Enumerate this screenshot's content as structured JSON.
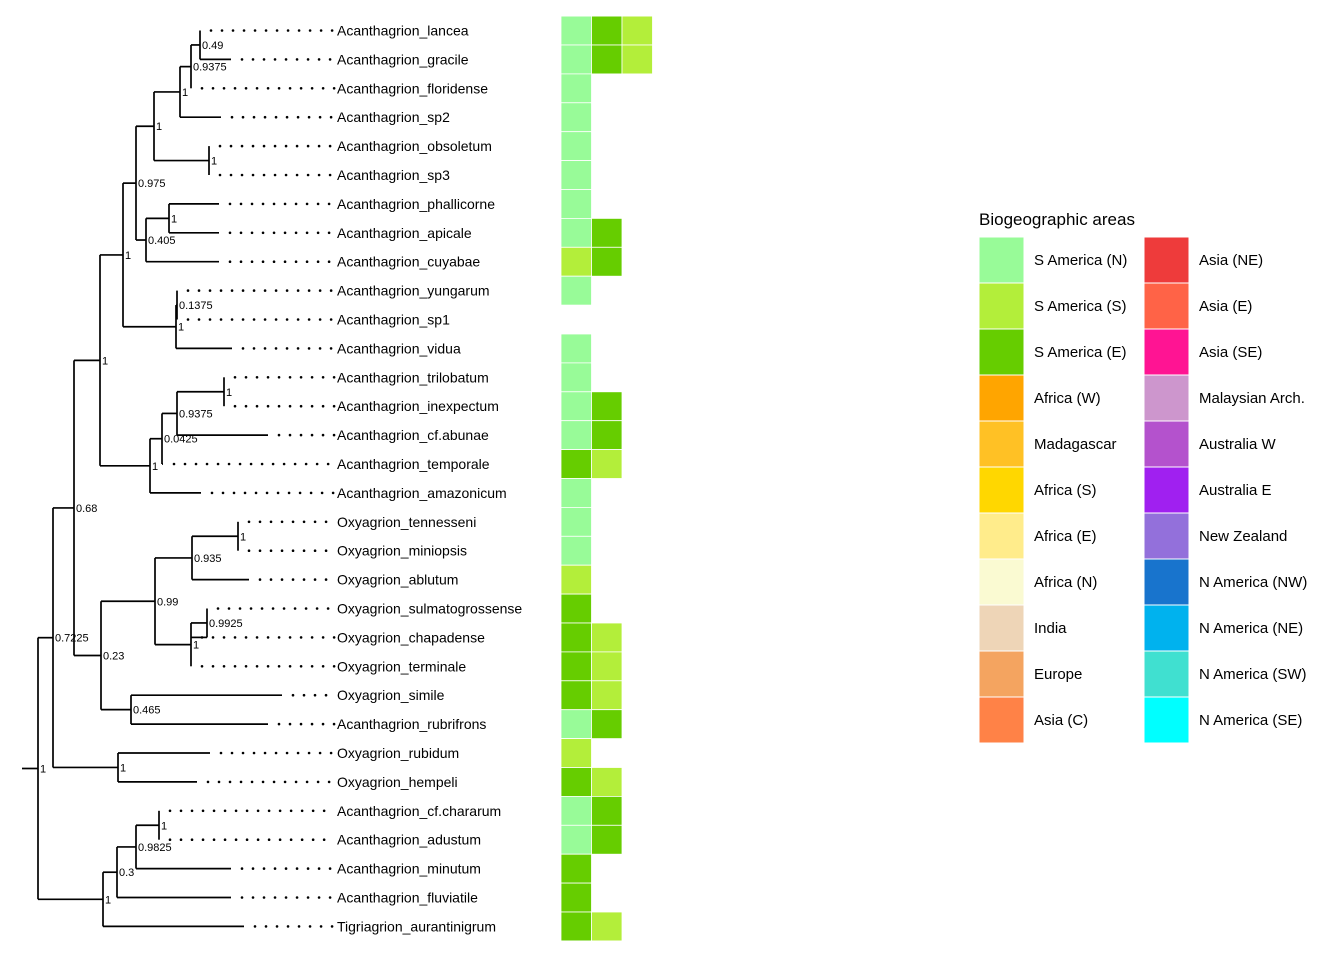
{
  "legend": {
    "title": "Biogeographic areas",
    "columns": [
      [
        {
          "label": "S America (N)",
          "color": "#98FB98"
        },
        {
          "label": "S America (S)",
          "color": "#B3EE3A"
        },
        {
          "label": "S America (E)",
          "color": "#66CD00"
        },
        {
          "label": "Africa (W)",
          "color": "#FFA500"
        },
        {
          "label": "Madagascar",
          "color": "#FFC125"
        },
        {
          "label": "Africa (S)",
          "color": "#FFD700"
        },
        {
          "label": "Africa (E)",
          "color": "#FFEC8B"
        },
        {
          "label": "Africa (N)",
          "color": "#FAFAD2"
        },
        {
          "label": "India",
          "color": "#EED5B7"
        },
        {
          "label": "Europe",
          "color": "#F4A460"
        },
        {
          "label": "Asia (C)",
          "color": "#FF8247"
        }
      ],
      [
        {
          "label": "Asia (NE)",
          "color": "#EE3B3B"
        },
        {
          "label": "Asia (E)",
          "color": "#FF6347"
        },
        {
          "label": "Asia (SE)",
          "color": "#FF1493"
        },
        {
          "label": "Malaysian Arch.",
          "color": "#CD96CD"
        },
        {
          "label": "Australia W",
          "color": "#B452CD"
        },
        {
          "label": "Australia E",
          "color": "#A020F0"
        },
        {
          "label": "New Zealand",
          "color": "#9370DB"
        },
        {
          "label": "N America (NW)",
          "color": "#1874CD"
        },
        {
          "label": "N America (NE)",
          "color": "#00B2EE"
        },
        {
          "label": "N America (SW)",
          "color": "#40E0D0"
        },
        {
          "label": "N America (SE)",
          "color": "#00FFFF"
        }
      ]
    ]
  },
  "tree": {
    "tips": [
      {
        "name": "Acanthagrion_lancea",
        "areas": [
          "S America (N)",
          "S America (E)",
          "S America (S)"
        ]
      },
      {
        "name": "Acanthagrion_gracile",
        "areas": [
          "S America (N)",
          "S America (E)",
          "S America (S)"
        ]
      },
      {
        "name": "Acanthagrion_floridense",
        "areas": [
          "S America (N)"
        ]
      },
      {
        "name": "Acanthagrion_sp2",
        "areas": [
          "S America (N)"
        ]
      },
      {
        "name": "Acanthagrion_obsoletum",
        "areas": [
          "S America (N)"
        ]
      },
      {
        "name": "Acanthagrion_sp3",
        "areas": [
          "S America (N)"
        ]
      },
      {
        "name": "Acanthagrion_phallicorne",
        "areas": [
          "S America (N)"
        ]
      },
      {
        "name": "Acanthagrion_apicale",
        "areas": [
          "S America (N)",
          "S America (E)"
        ]
      },
      {
        "name": "Acanthagrion_cuyabae",
        "areas": [
          "S America (S)",
          "S America (E)"
        ]
      },
      {
        "name": "Acanthagrion_yungarum",
        "areas": [
          "S America (N)"
        ]
      },
      {
        "name": "Acanthagrion_sp1",
        "areas": []
      },
      {
        "name": "Acanthagrion_vidua",
        "areas": [
          "S America (N)"
        ]
      },
      {
        "name": "Acanthagrion_trilobatum",
        "areas": [
          "S America (N)"
        ]
      },
      {
        "name": "Acanthagrion_inexpectum",
        "areas": [
          "S America (N)",
          "S America (E)"
        ]
      },
      {
        "name": "Acanthagrion_cf.abunae",
        "areas": [
          "S America (N)",
          "S America (E)"
        ]
      },
      {
        "name": "Acanthagrion_temporale",
        "areas": [
          "S America (E)",
          "S America (S)"
        ]
      },
      {
        "name": "Acanthagrion_amazonicum",
        "areas": [
          "S America (N)"
        ]
      },
      {
        "name": "Oxyagrion_tennesseni",
        "areas": [
          "S America (N)"
        ]
      },
      {
        "name": "Oxyagrion_miniopsis",
        "areas": [
          "S America (N)"
        ]
      },
      {
        "name": "Oxyagrion_ablutum",
        "areas": [
          "S America (S)"
        ]
      },
      {
        "name": "Oxyagrion_sulmatogrossense",
        "areas": [
          "S America (E)"
        ]
      },
      {
        "name": "Oxyagrion_chapadense",
        "areas": [
          "S America (E)",
          "S America (S)"
        ]
      },
      {
        "name": "Oxyagrion_terminale",
        "areas": [
          "S America (E)",
          "S America (S)"
        ]
      },
      {
        "name": "Oxyagrion_simile",
        "areas": [
          "S America (E)",
          "S America (S)"
        ]
      },
      {
        "name": "Acanthagrion_rubrifrons",
        "areas": [
          "S America (N)",
          "S America (E)"
        ]
      },
      {
        "name": "Oxyagrion_rubidum",
        "areas": [
          "S America (S)"
        ]
      },
      {
        "name": "Oxyagrion_hempeli",
        "areas": [
          "S America (E)",
          "S America (S)"
        ]
      },
      {
        "name": "Acanthagrion_cf.chararum",
        "areas": [
          "S America (N)",
          "S America (E)"
        ]
      },
      {
        "name": "Acanthagrion_adustum",
        "areas": [
          "S America (N)",
          "S America (E)"
        ]
      },
      {
        "name": "Acanthagrion_minutum",
        "areas": [
          "S America (E)"
        ]
      },
      {
        "name": "Acanthagrion_fluviatile",
        "areas": [
          "S America (E)"
        ]
      },
      {
        "name": "Tigriagrion_aurantinigrum",
        "areas": [
          "S America (E)",
          "S America (S)"
        ]
      }
    ],
    "nodes": [
      {
        "id": "n_lg",
        "children": [
          "t0",
          "t1"
        ],
        "support": "0.49"
      },
      {
        "id": "n_lgf",
        "children": [
          "n_lg",
          "t2"
        ],
        "support": "0.9375"
      },
      {
        "id": "n_lgfs",
        "children": [
          "n_lgf",
          "t3"
        ],
        "support": "1"
      },
      {
        "id": "n_os",
        "children": [
          "t4",
          "t5"
        ],
        "support": "1"
      },
      {
        "id": "n_topA",
        "children": [
          "n_lgfs",
          "n_os"
        ],
        "support": "1"
      },
      {
        "id": "n_pa",
        "children": [
          "t6",
          "t7"
        ],
        "support": "1"
      },
      {
        "id": "n_pac",
        "children": [
          "n_pa",
          "t8"
        ],
        "support": "0.405"
      },
      {
        "id": "n_A",
        "children": [
          "n_topA",
          "n_pac"
        ],
        "support": "0.975"
      },
      {
        "id": "n_ys",
        "children": [
          "t9",
          "t10"
        ],
        "support": "0.1375"
      },
      {
        "id": "n_ysv",
        "children": [
          "n_ys",
          "t11"
        ],
        "support": "1"
      },
      {
        "id": "n_B",
        "children": [
          "n_A",
          "n_ysv"
        ],
        "support": "1"
      },
      {
        "id": "n_ti",
        "children": [
          "t12",
          "t13"
        ],
        "support": "1"
      },
      {
        "id": "n_tia",
        "children": [
          "n_ti",
          "t14"
        ],
        "support": "0.9375"
      },
      {
        "id": "n_tiat",
        "children": [
          "n_tia",
          "t15"
        ],
        "support": "0.0425"
      },
      {
        "id": "n_C",
        "children": [
          "n_tiat",
          "t16"
        ],
        "support": "1"
      },
      {
        "id": "n_D",
        "children": [
          "n_B",
          "n_C"
        ],
        "support": "1"
      },
      {
        "id": "n_tm",
        "children": [
          "t17",
          "t18"
        ],
        "support": "1"
      },
      {
        "id": "n_tma",
        "children": [
          "n_tm",
          "t19"
        ],
        "support": "0.935"
      },
      {
        "id": "n_sc",
        "children": [
          "t20",
          "t21"
        ],
        "support": "0.9925"
      },
      {
        "id": "n_sct",
        "children": [
          "n_sc",
          "t22"
        ],
        "support": "1"
      },
      {
        "id": "n_E",
        "children": [
          "n_tma",
          "n_sct"
        ],
        "support": "0.99"
      },
      {
        "id": "n_sr",
        "children": [
          "t23",
          "t24"
        ],
        "support": "0.465"
      },
      {
        "id": "n_F",
        "children": [
          "n_E",
          "n_sr"
        ],
        "support": "0.23"
      },
      {
        "id": "n_G",
        "children": [
          "n_D",
          "n_F"
        ],
        "support": "0.68"
      },
      {
        "id": "n_rh",
        "children": [
          "t25",
          "t26"
        ],
        "support": "1"
      },
      {
        "id": "n_H",
        "children": [
          "n_G",
          "n_rh"
        ],
        "support": "0.7225"
      },
      {
        "id": "n_ca",
        "children": [
          "t27",
          "t28"
        ],
        "support": "1"
      },
      {
        "id": "n_cam",
        "children": [
          "n_ca",
          "t29"
        ],
        "support": "0.9825"
      },
      {
        "id": "n_camf",
        "children": [
          "n_cam",
          "t30"
        ],
        "support": "0.3"
      },
      {
        "id": "n_I",
        "children": [
          "n_camf",
          "t31"
        ],
        "support": "1"
      },
      {
        "id": "n_root",
        "children": [
          "n_H",
          "n_I"
        ],
        "support": "1"
      }
    ]
  }
}
